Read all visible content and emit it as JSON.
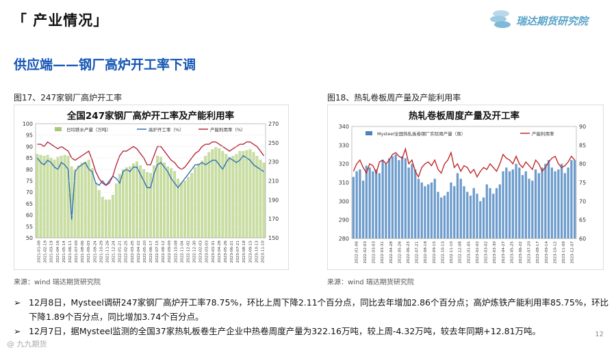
{
  "header": {
    "section_title": "「 产业情况」",
    "logo_text": "瑞达期货研究院"
  },
  "subtitle": "供应端——钢厂高炉开工率下调",
  "left_figure": {
    "caption": "图17、247家钢厂高炉开工率",
    "source": "来源：wind   瑞达期货研究院"
  },
  "right_figure": {
    "caption": "图18、热轧卷板周产量及产能利用率",
    "source": "来源：wind   瑞达期货研究院"
  },
  "chart_data": [
    {
      "type": "bar",
      "title": "全国247家钢厂高炉开工率及产能利用率",
      "legend": [
        "日均铁水产量（万吨）",
        "高炉开工率（%）",
        "产能利用率（%）"
      ],
      "left_axis": {
        "ticks": [
          50,
          55,
          60,
          65,
          70,
          75,
          80,
          85,
          90,
          95,
          100
        ],
        "ylim": [
          50,
          100
        ]
      },
      "right_axis": {
        "ticks": [
          150,
          170,
          190,
          210,
          230,
          250,
          270
        ],
        "ylim": [
          150,
          270
        ]
      },
      "x_labels": [
        "2021-01-08",
        "2021-02-19",
        "2021-03-19",
        "2021-04-16",
        "2021-05-14",
        "2021-06-11",
        "2021-07-09",
        "2021-08-06",
        "2021-09-03",
        "2021-09-24",
        "2021-10-29",
        "2021-11-26",
        "2021-12-24",
        "2022-01-21",
        "2022-02-25",
        "2022-03-25",
        "2022-04-22",
        "2022-05-20",
        "2022-06-17",
        "2022-07-15",
        "2022-08-12",
        "2022-09-09",
        "2022-10-08",
        "2022-11-04",
        "2022-12-02",
        "2022-12-30",
        "2023-02-03",
        "2023-03-03",
        "2023-03-31",
        "2023-04-28",
        "2023-05-26",
        "2023-06-21",
        "2023-07-21",
        "2023-08-18",
        "2023-09-15",
        "2023-10-13",
        "2023-11-10"
      ],
      "series": [
        {
          "name": "日均铁水产量（万吨）",
          "axis": "right",
          "values": [
            238,
            237,
            236,
            237,
            234,
            232,
            235,
            236,
            237,
            236,
            225,
            222,
            226,
            229,
            230,
            232,
            223,
            208,
            200,
            193,
            190,
            190,
            195,
            207,
            217,
            222,
            224,
            225,
            228,
            230,
            226,
            222,
            219,
            218,
            226,
            236,
            235,
            229,
            225,
            223,
            220,
            212,
            208,
            210,
            214,
            218,
            224,
            228,
            231,
            236,
            240,
            243,
            245,
            244,
            241,
            238,
            235,
            236,
            238,
            241,
            241,
            242,
            243,
            240,
            236,
            232,
            229
          ]
        },
        {
          "name": "高炉开工率（%）",
          "axis": "left",
          "values": [
            85,
            83,
            82,
            84,
            83,
            81,
            80,
            83,
            82,
            80,
            58,
            79,
            81,
            82,
            83,
            80,
            79,
            74,
            73,
            75,
            73,
            75,
            77,
            76,
            74,
            79,
            80,
            79,
            81,
            81,
            78,
            75,
            72,
            72,
            78,
            82,
            83,
            81,
            79,
            76,
            74,
            72,
            74,
            76,
            78,
            80,
            82,
            82,
            83,
            82,
            83,
            84,
            84,
            82,
            80,
            83,
            85,
            84,
            83,
            84,
            86,
            85,
            84,
            82,
            81,
            80,
            79
          ]
        },
        {
          "name": "产能利用率（%）",
          "axis": "left",
          "values": [
            91,
            91,
            90,
            92,
            91,
            90,
            89,
            90,
            89,
            88,
            85,
            84,
            85,
            86,
            87,
            88,
            84,
            79,
            76,
            74,
            73,
            74,
            77,
            82,
            86,
            88,
            88,
            89,
            90,
            89,
            87,
            85,
            82,
            82,
            86,
            90,
            90,
            88,
            86,
            84,
            83,
            81,
            80,
            81,
            83,
            85,
            87,
            88,
            90,
            91,
            91,
            92,
            92,
            91,
            90,
            89,
            88,
            89,
            90,
            91,
            91,
            92,
            92,
            91,
            90,
            88,
            86
          ]
        }
      ]
    },
    {
      "type": "bar",
      "title": "热轧卷板周度产量及开工率",
      "legend": [
        "Mysteel全国热轧板卷钢厂实际周产量（周）",
        "产能利用率"
      ],
      "left_axis": {
        "ticks": [
          280,
          290,
          300,
          310,
          320,
          330,
          340
        ],
        "ylim": [
          280,
          340
        ]
      },
      "right_axis": {
        "ticks": [
          60,
          65,
          70,
          75,
          80,
          85,
          90
        ],
        "ylim": [
          60,
          90
        ]
      },
      "x_labels": [
        "2022-01-06",
        "2022-02-03",
        "2022-03-03",
        "2022-03-31",
        "2022-04-28",
        "2022-05-26",
        "2022-06-23",
        "2022-07-21",
        "2022-08-18",
        "2022-09-15",
        "2022-10-13",
        "2022-11-10",
        "2022-12-08",
        "2023-01-05",
        "2023-02-02",
        "2023-03-02",
        "2023-03-30",
        "2023-04-27",
        "2023-05-25",
        "2023-06-22",
        "2023-07-20",
        "2023-08-17",
        "2023-09-14",
        "2023-10-12",
        "2023-11-09",
        "2023-12-07"
      ],
      "series": [
        {
          "name": "Mysteel全国热轧板卷钢厂实际周产量（周）",
          "axis": "left",
          "values": [
            313,
            316,
            317,
            311,
            319,
            318,
            316,
            317,
            315,
            322,
            320,
            323,
            324,
            325,
            322,
            324,
            323,
            318,
            320,
            317,
            312,
            310,
            308,
            309,
            310,
            312,
            305,
            302,
            303,
            305,
            310,
            308,
            315,
            312,
            308,
            305,
            303,
            307,
            304,
            300,
            302,
            309,
            307,
            304,
            307,
            309,
            316,
            318,
            316,
            317,
            320,
            318,
            314,
            316,
            312,
            311,
            317,
            315,
            318,
            320,
            322,
            318,
            316,
            317,
            320,
            315,
            318,
            322,
            322
          ]
        },
        {
          "name": "产能利用率",
          "axis": "left",
          "values": [
            316,
            320,
            322,
            318,
            315,
            320,
            319,
            315,
            321,
            322,
            320,
            322,
            325,
            326,
            324,
            323,
            328,
            320,
            322,
            316,
            313,
            318,
            320,
            321,
            319,
            322,
            317,
            315,
            320,
            322,
            326,
            318,
            320,
            316,
            319,
            318,
            315,
            317,
            313,
            316,
            318,
            317,
            320,
            318,
            316,
            320,
            325,
            323,
            322,
            320,
            324,
            320,
            318,
            321,
            319,
            317,
            322,
            320,
            316,
            318,
            321,
            323,
            324,
            320,
            318,
            319,
            321,
            324,
            322
          ]
        }
      ]
    }
  ],
  "bullets": [
    "12月8日，Mysteel调研247家钢厂高炉开工率78.75%，环比上周下降2.11个百分点，同比去年增加2.86个百分点；高炉炼铁产能利用率85.75%，环比下降1.89个百分点，同比增加3.74个百分点。",
    "12月7日，据Mysteel监测的全国37家热轧板卷生产企业中热卷周度产量为322.16万吨，较上周-4.32万吨，较去年同期+12.81万吨。"
  ],
  "page_number": "12",
  "watermark": "@ 九九期货"
}
